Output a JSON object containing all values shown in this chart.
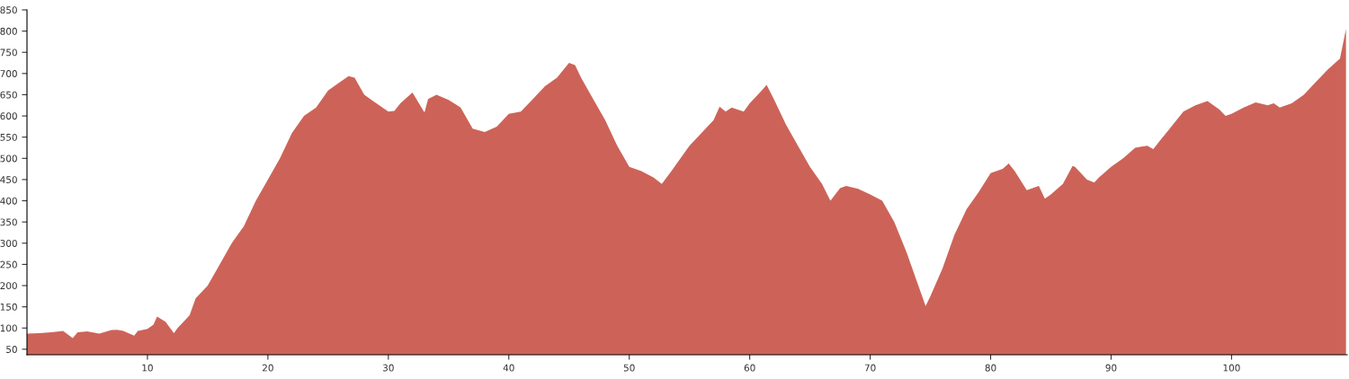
{
  "chart_data": {
    "type": "area",
    "color": "#cd6358",
    "x": [
      0,
      1,
      2,
      3,
      3.8,
      4.2,
      5,
      6,
      7,
      7.5,
      8,
      8.9,
      9.2,
      10,
      10.5,
      10.8,
      11.5,
      12.2,
      12.5,
      13,
      13.5,
      14,
      15,
      16,
      17,
      18,
      19,
      20,
      21,
      22,
      23,
      24,
      25,
      26,
      26.7,
      27.2,
      28,
      29,
      30,
      30.5,
      31,
      32,
      33,
      33.3,
      34,
      35,
      36,
      37,
      38,
      39,
      40,
      41,
      42,
      43,
      44,
      45,
      45.5,
      46,
      47,
      48,
      49,
      50,
      51,
      52,
      52.7,
      53.5,
      54,
      55,
      56,
      57,
      57.5,
      58,
      58.5,
      59.5,
      60,
      61,
      61.4,
      62,
      63,
      64,
      65,
      66,
      66.7,
      67.5,
      68,
      69,
      70,
      71,
      72,
      73,
      74,
      74.6,
      75,
      76,
      77,
      78,
      79,
      80,
      81,
      81.5,
      82,
      83,
      84,
      84.5,
      85,
      86,
      86.8,
      87,
      88,
      88.6,
      89,
      90,
      91,
      92,
      93,
      93.5,
      94,
      95,
      96,
      97,
      98,
      99,
      99.5,
      100,
      101,
      101.7,
      102,
      103,
      103.5,
      104,
      105,
      106,
      107,
      108,
      109,
      109.5
    ],
    "values": [
      87,
      88,
      90,
      93,
      76,
      90,
      92,
      87,
      95,
      96,
      93,
      82,
      93,
      98,
      108,
      127,
      115,
      88,
      100,
      115,
      130,
      170,
      200,
      250,
      300,
      340,
      400,
      450,
      500,
      560,
      600,
      620,
      660,
      680,
      694,
      690,
      650,
      630,
      610,
      612,
      630,
      655,
      608,
      640,
      650,
      638,
      620,
      570,
      562,
      575,
      605,
      610,
      640,
      670,
      690,
      725,
      720,
      690,
      640,
      590,
      530,
      480,
      470,
      455,
      440,
      470,
      490,
      530,
      560,
      590,
      622,
      610,
      620,
      610,
      630,
      660,
      673,
      640,
      580,
      530,
      480,
      440,
      400,
      430,
      435,
      428,
      415,
      400,
      350,
      280,
      200,
      152,
      175,
      240,
      320,
      380,
      420,
      465,
      475,
      488,
      470,
      425,
      435,
      405,
      415,
      440,
      482,
      480,
      450,
      443,
      455,
      480,
      500,
      525,
      530,
      522,
      540,
      575,
      610,
      625,
      635,
      615,
      600,
      605,
      620,
      628,
      632,
      625,
      630,
      620,
      630,
      650,
      680,
      710,
      735,
      805
    ],
    "xlim": [
      0,
      109.6
    ],
    "ylim": [
      37,
      850
    ],
    "xticks": [
      10,
      20,
      30,
      40,
      50,
      60,
      70,
      80,
      90,
      100
    ],
    "yticks": [
      50,
      100,
      150,
      200,
      250,
      300,
      350,
      400,
      450,
      500,
      550,
      600,
      650,
      700,
      750,
      800,
      850
    ],
    "grid": false
  }
}
